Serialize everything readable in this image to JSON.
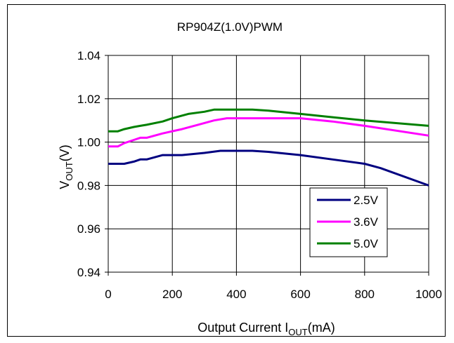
{
  "chart_data": {
    "type": "line",
    "title": "RP904Z(1.0V)PWM",
    "xlabel": {
      "main": "Output Current I",
      "sub": "OUT",
      "tail": "(mA)"
    },
    "ylabel": {
      "main": "V",
      "sub": "OUT",
      "tail": "(V)"
    },
    "xlim": [
      0,
      1000
    ],
    "ylim": [
      0.94,
      1.04
    ],
    "x_ticks": [
      "0",
      "200",
      "400",
      "600",
      "800",
      "1000"
    ],
    "y_ticks": [
      "0.94",
      "0.96",
      "0.98",
      "1.00",
      "1.02",
      "1.04"
    ],
    "x_tick_values": [
      0,
      200,
      400,
      600,
      800,
      1000
    ],
    "y_tick_values": [
      0.94,
      0.96,
      0.98,
      1.0,
      1.02,
      1.04
    ],
    "grid": true,
    "legend_position": "bottom-right",
    "series": [
      {
        "name": "2.5V",
        "color": "#000080",
        "x": [
          0,
          50,
          80,
          100,
          120,
          170,
          230,
          300,
          350,
          400,
          450,
          500,
          600,
          700,
          800,
          850,
          1000
        ],
        "y": [
          0.99,
          0.99,
          0.991,
          0.992,
          0.992,
          0.994,
          0.994,
          0.995,
          0.996,
          0.996,
          0.996,
          0.9955,
          0.994,
          0.992,
          0.99,
          0.988,
          0.98
        ]
      },
      {
        "name": "3.6V",
        "color": "#FF00FF",
        "x": [
          0,
          30,
          50,
          80,
          100,
          120,
          170,
          230,
          280,
          330,
          370,
          400,
          450,
          500,
          600,
          700,
          800,
          1000
        ],
        "y": [
          0.998,
          0.998,
          0.9995,
          1.001,
          1.002,
          1.002,
          1.004,
          1.006,
          1.008,
          1.01,
          1.011,
          1.011,
          1.011,
          1.011,
          1.011,
          1.0095,
          1.0075,
          1.003
        ]
      },
      {
        "name": "5.0V",
        "color": "#008000",
        "x": [
          0,
          30,
          50,
          80,
          100,
          120,
          170,
          200,
          250,
          300,
          330,
          400,
          450,
          500,
          600,
          700,
          800,
          1000
        ],
        "y": [
          1.005,
          1.005,
          1.006,
          1.007,
          1.0075,
          1.008,
          1.0095,
          1.011,
          1.013,
          1.014,
          1.015,
          1.015,
          1.015,
          1.0145,
          1.013,
          1.0115,
          1.01,
          1.0075
        ]
      }
    ]
  }
}
